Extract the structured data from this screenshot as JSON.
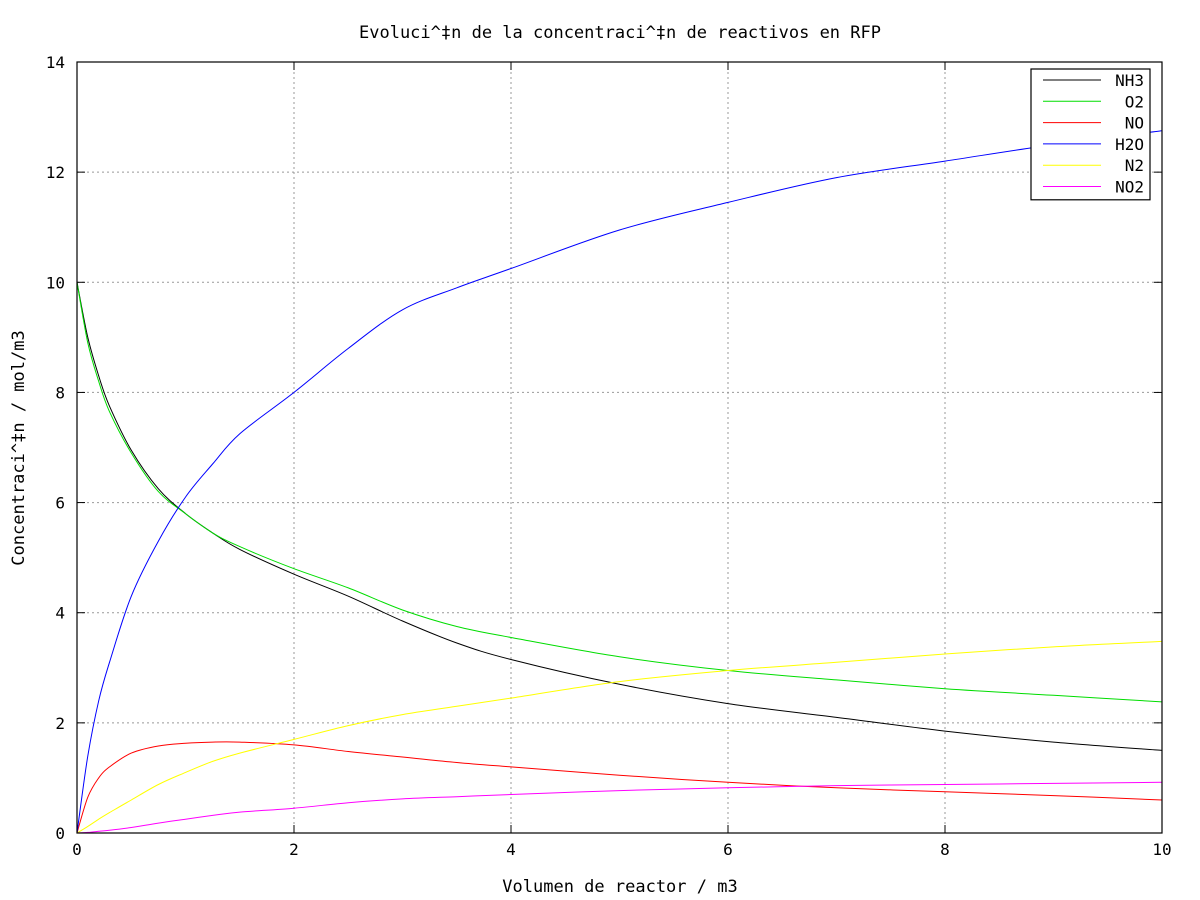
{
  "chart_data": {
    "type": "line",
    "title": "Evoluci^‡n de la concentraci^‡n de reactivos en RFP",
    "xlabel": "Volumen de reactor / m3",
    "ylabel": "Concentraci^‡n / mol/m3",
    "xlim": [
      0,
      10
    ],
    "ylim": [
      0,
      14
    ],
    "xticks": [
      "0",
      "2",
      "4",
      "6",
      "8",
      "10"
    ],
    "yticks": [
      "0",
      "2",
      "4",
      "6",
      "8",
      "10",
      "12",
      "14"
    ],
    "grid": true,
    "legend_position": "top-right",
    "x": [
      0,
      0.1,
      0.2,
      0.3,
      0.5,
      0.75,
      1,
      1.25,
      1.5,
      2,
      2.5,
      3,
      3.5,
      4,
      5,
      6,
      7,
      8,
      9,
      10
    ],
    "series": [
      {
        "name": "NH3",
        "color": "#000000",
        "values": [
          10,
          9.0,
          8.3,
          7.75,
          6.95,
          6.25,
          5.8,
          5.45,
          5.15,
          4.7,
          4.3,
          3.85,
          3.45,
          3.15,
          2.7,
          2.35,
          2.1,
          1.85,
          1.65,
          1.5
        ]
      },
      {
        "name": "O2",
        "color": "#00dd00",
        "values": [
          10,
          8.9,
          8.2,
          7.65,
          6.9,
          6.2,
          5.8,
          5.45,
          5.2,
          4.8,
          4.45,
          4.05,
          3.75,
          3.55,
          3.2,
          2.95,
          2.78,
          2.62,
          2.5,
          2.38
        ]
      },
      {
        "name": "NO",
        "color": "#ff0000",
        "values": [
          0,
          0.65,
          1.0,
          1.2,
          1.45,
          1.58,
          1.63,
          1.65,
          1.65,
          1.6,
          1.48,
          1.38,
          1.28,
          1.2,
          1.05,
          0.92,
          0.82,
          0.75,
          0.68,
          0.6
        ]
      },
      {
        "name": "H2O",
        "color": "#0000ff",
        "values": [
          0,
          1.4,
          2.4,
          3.1,
          4.3,
          5.3,
          6.1,
          6.7,
          7.25,
          8.0,
          8.8,
          9.5,
          9.9,
          10.25,
          10.95,
          11.45,
          11.9,
          12.2,
          12.5,
          12.75
        ]
      },
      {
        "name": "N2",
        "color": "#ffff00",
        "values": [
          0,
          0.12,
          0.25,
          0.37,
          0.6,
          0.88,
          1.1,
          1.3,
          1.45,
          1.7,
          1.95,
          2.15,
          2.3,
          2.45,
          2.75,
          2.95,
          3.1,
          3.25,
          3.38,
          3.48
        ]
      },
      {
        "name": "NO2",
        "color": "#ff00ff",
        "values": [
          0,
          0.01,
          0.03,
          0.05,
          0.1,
          0.18,
          0.25,
          0.32,
          0.38,
          0.45,
          0.55,
          0.62,
          0.66,
          0.7,
          0.77,
          0.82,
          0.86,
          0.88,
          0.9,
          0.92
        ]
      }
    ]
  }
}
